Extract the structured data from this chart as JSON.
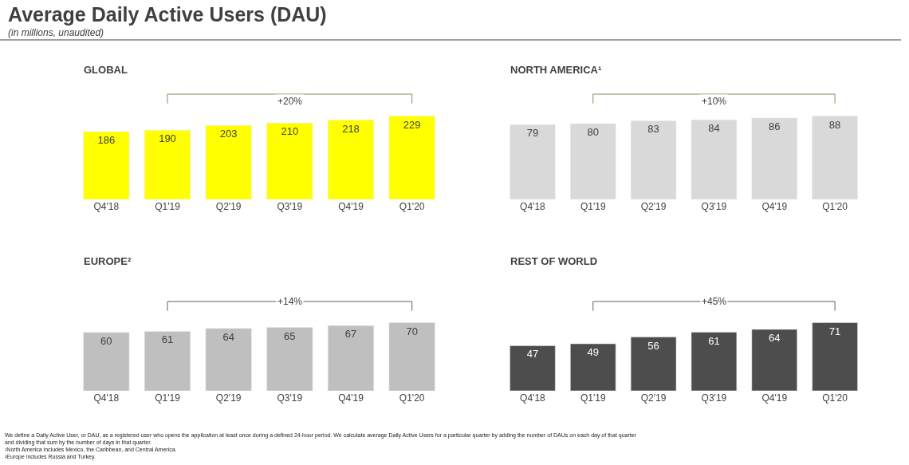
{
  "chart_data": [
    {
      "type": "other",
      "title": "Average Daily Active Users (DAU)",
      "subtitle": "(in millions, unaudited)",
      "annotations": [
        "We define a Daily Active User, or DAU, as a registered user who opens the application at least once during a defined 24-hour period. We calculate average Daily Active Users for a particular quarter by adding the number of DAUs on each day of that quarter and dividing that sum by the number of days in that quarter.",
        "¹North America includes Mexico, the Caribbean, and Central America.",
        "²Europe includes Russia and Turkey."
      ]
    },
    {
      "type": "bar",
      "title": "GLOBAL",
      "categories": [
        "Q4'18",
        "Q1'19",
        "Q2'19",
        "Q3'19",
        "Q4'19",
        "Q1'20"
      ],
      "values": [
        186,
        190,
        203,
        210,
        218,
        229
      ],
      "color": "#ffff00",
      "data_labels": true,
      "tick_labels": "x",
      "annotations": [
        "+20%"
      ]
    },
    {
      "type": "bar",
      "title": "NORTH AMERICA¹",
      "categories": [
        "Q4'18",
        "Q1'19",
        "Q2'19",
        "Q3'19",
        "Q4'19",
        "Q1'20"
      ],
      "values": [
        79,
        80,
        83,
        84,
        86,
        88
      ],
      "color": "#d9d9d9",
      "data_labels": true,
      "tick_labels": "x",
      "annotations": [
        "+10%"
      ]
    },
    {
      "type": "bar",
      "title": "EUROPE²",
      "categories": [
        "Q4'18",
        "Q1'19",
        "Q2'19",
        "Q3'19",
        "Q4'19",
        "Q1'20"
      ],
      "values": [
        60,
        61,
        64,
        65,
        67,
        70
      ],
      "color": "#bfbfbf",
      "data_labels": true,
      "tick_labels": "x",
      "annotations": [
        "+14%"
      ]
    },
    {
      "type": "bar",
      "title": "REST OF WORLD",
      "categories": [
        "Q4'18",
        "Q1'19",
        "Q2'19",
        "Q3'19",
        "Q4'19",
        "Q1'20"
      ],
      "values": [
        47,
        49,
        56,
        61,
        64,
        71
      ],
      "color": "#4d4d4d",
      "data_labels": true,
      "tick_labels": "x",
      "annotations": [
        "+45%"
      ]
    }
  ]
}
